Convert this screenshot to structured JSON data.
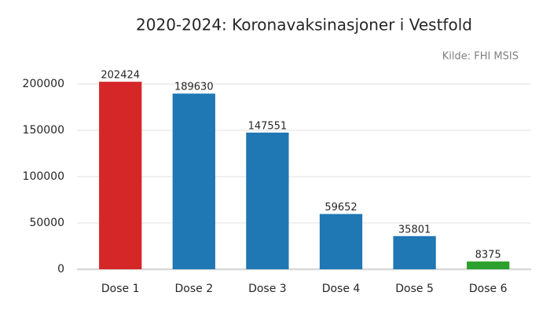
{
  "chart_data": {
    "type": "bar",
    "title": "2020-2024: Koronavaksinasjoner i Vestfold",
    "source": "Kilde: FHI MSIS",
    "categories": [
      "Dose 1",
      "Dose 2",
      "Dose 3",
      "Dose 4",
      "Dose 5",
      "Dose 6"
    ],
    "values": [
      202424,
      189630,
      147551,
      59652,
      35801,
      8375
    ],
    "colors": [
      "#d62728",
      "#1f77b4",
      "#1f77b4",
      "#1f77b4",
      "#1f77b4",
      "#2ca02c"
    ],
    "ylim": [
      0,
      210000
    ],
    "yticks": [
      0,
      50000,
      100000,
      150000,
      200000
    ],
    "grid": true
  }
}
